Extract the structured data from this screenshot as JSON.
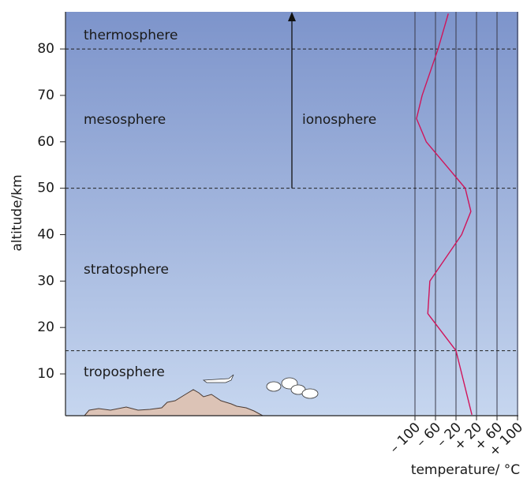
{
  "chart_data": {
    "type": "line",
    "y_label": "altitude/km",
    "x_label": "temperature/ °C",
    "ylim": [
      1,
      88
    ],
    "yticks": [
      10,
      20,
      30,
      40,
      50,
      60,
      70,
      80
    ],
    "xlim": [
      -100,
      100
    ],
    "xticks": [
      {
        "value": -100,
        "label": "– 100"
      },
      {
        "value": -60,
        "label": "– 60"
      },
      {
        "value": -20,
        "label": "– 20"
      },
      {
        "value": 20,
        "label": "+ 20"
      },
      {
        "value": 60,
        "label": "+ 60"
      },
      {
        "value": 100,
        "label": "+ 100"
      }
    ],
    "boundaries": [
      15,
      50,
      80
    ],
    "layers": [
      "troposphere",
      "stratosphere",
      "mesosphere",
      "thermosphere"
    ],
    "ionosphere": "ionosphere",
    "series": [
      {
        "color": "#d0145a",
        "x": [
          11,
          -20,
          -75,
          -71,
          -9,
          9,
          -2,
          -40,
          -78,
          -97,
          -86,
          -55,
          -35
        ],
        "values": [
          1.2,
          15,
          23,
          30,
          40,
          45,
          50,
          55,
          60,
          65,
          70,
          80,
          87.6
        ]
      }
    ]
  }
}
